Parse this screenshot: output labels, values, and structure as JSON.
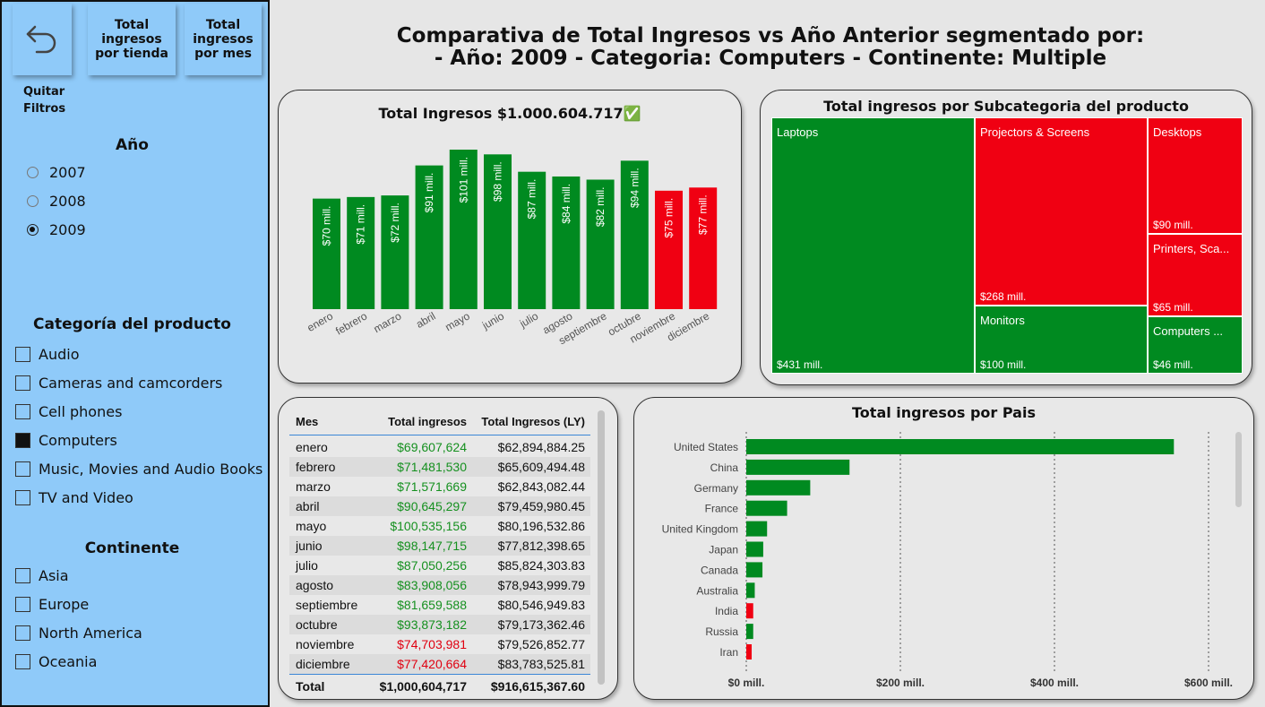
{
  "sidebar": {
    "back_label": "↶",
    "nav_tienda": "Total ingresos por tienda",
    "nav_mes": "Total ingresos por mes",
    "clear_filters": "Quitar Filtros",
    "year_title": "Año",
    "years": [
      {
        "label": "2007",
        "selected": false
      },
      {
        "label": "2008",
        "selected": false
      },
      {
        "label": "2009",
        "selected": true
      }
    ],
    "category_title": "Categoría del producto",
    "categories": [
      {
        "label": "Audio",
        "checked": false
      },
      {
        "label": "Cameras and camcorders",
        "checked": false
      },
      {
        "label": "Cell phones",
        "checked": false
      },
      {
        "label": "Computers",
        "checked": true
      },
      {
        "label": "Music, Movies and Audio Books",
        "checked": false
      },
      {
        "label": "TV and Video",
        "checked": false
      }
    ],
    "continent_title": "Continente",
    "continents": [
      {
        "label": "Asia",
        "checked": false
      },
      {
        "label": "Europe",
        "checked": false
      },
      {
        "label": "North America",
        "checked": false
      },
      {
        "label": "Oceania",
        "checked": false
      }
    ]
  },
  "header": {
    "line1": "Comparativa de Total Ingresos vs Año Anterior segmentado por:",
    "line2": "- Año: 2009 - Categoria: Computers - Continente: Multiple"
  },
  "colors": {
    "positive": "#008a20",
    "negative": "#f00012"
  },
  "chart_data": [
    {
      "type": "bar",
      "title": "Total Ingresos $1.000.604.717✅",
      "categories": [
        "enero",
        "febrero",
        "marzo",
        "abril",
        "mayo",
        "junio",
        "julio",
        "agosto",
        "septiembre",
        "octubre",
        "noviembre",
        "diciembre"
      ],
      "values": [
        70,
        71,
        72,
        91,
        101,
        98,
        87,
        84,
        82,
        94,
        75,
        77
      ],
      "data_labels": [
        "$70 mill.",
        "$71 mill.",
        "$72 mill.",
        "$91 mill.",
        "$101 mill.",
        "$98 mill.",
        "$87 mill.",
        "$84 mill.",
        "$82 mill.",
        "$94 mill.",
        "$75 mill.",
        "$77 mill."
      ],
      "status": [
        "up",
        "up",
        "up",
        "up",
        "up",
        "up",
        "up",
        "up",
        "up",
        "up",
        "down",
        "down"
      ],
      "unit": "mill."
    },
    {
      "type": "treemap",
      "title": "Total ingresos por Subcategoria del producto",
      "items": [
        {
          "label": "Laptops",
          "value": 431,
          "value_label": "$431 mill.",
          "status": "up"
        },
        {
          "label": "Projectors & Screens",
          "value": 268,
          "value_label": "$268 mill.",
          "status": "down"
        },
        {
          "label": "Monitors",
          "value": 100,
          "value_label": "$100 mill.",
          "status": "up"
        },
        {
          "label": "Desktops",
          "value": 90,
          "value_label": "$90 mill.",
          "status": "down"
        },
        {
          "label": "Printers, Sca...",
          "value": 65,
          "value_label": "$65 mill.",
          "status": "down"
        },
        {
          "label": "Computers ...",
          "value": 46,
          "value_label": "$46 mill.",
          "status": "up"
        }
      ]
    },
    {
      "type": "bar",
      "orientation": "horizontal",
      "title": "Total ingresos por Pais",
      "categories": [
        "United States",
        "China",
        "Germany",
        "France",
        "United Kingdom",
        "Japan",
        "Canada",
        "Australia",
        "India",
        "Russia",
        "Iran"
      ],
      "values": [
        555,
        134,
        83,
        53,
        27,
        22,
        21,
        11,
        9,
        9,
        7
      ],
      "status": [
        "up",
        "up",
        "up",
        "up",
        "up",
        "up",
        "up",
        "up",
        "down",
        "up",
        "down"
      ],
      "xlim": [
        0,
        620
      ],
      "ticks": [
        0,
        200,
        400,
        600
      ],
      "tick_labels": [
        "$0 mill.",
        "$200 mill.",
        "$400 mill.",
        "$600 mill."
      ]
    },
    {
      "type": "table",
      "columns": [
        "Mes",
        "Total ingresos",
        "Total Ingresos (LY)"
      ],
      "rows": [
        [
          "enero",
          "$69,607,624",
          "$62,894,884.25",
          "up"
        ],
        [
          "febrero",
          "$71,481,530",
          "$65,609,494.48",
          "up"
        ],
        [
          "marzo",
          "$71,571,669",
          "$62,843,082.44",
          "up"
        ],
        [
          "abril",
          "$90,645,297",
          "$79,459,980.45",
          "up"
        ],
        [
          "mayo",
          "$100,535,156",
          "$80,196,532.86",
          "up"
        ],
        [
          "junio",
          "$98,147,715",
          "$77,812,398.65",
          "up"
        ],
        [
          "julio",
          "$87,050,256",
          "$85,824,303.83",
          "up"
        ],
        [
          "agosto",
          "$83,908,056",
          "$78,943,999.79",
          "up"
        ],
        [
          "septiembre",
          "$81,659,588",
          "$80,546,949.83",
          "up"
        ],
        [
          "octubre",
          "$93,873,182",
          "$79,173,362.46",
          "up"
        ],
        [
          "noviembre",
          "$74,703,981",
          "$79,526,852.77",
          "down"
        ],
        [
          "diciembre",
          "$77,420,664",
          "$83,783,525.81",
          "down"
        ]
      ],
      "total": [
        "Total",
        "$1,000,604,717",
        "$916,615,367.60"
      ]
    }
  ]
}
